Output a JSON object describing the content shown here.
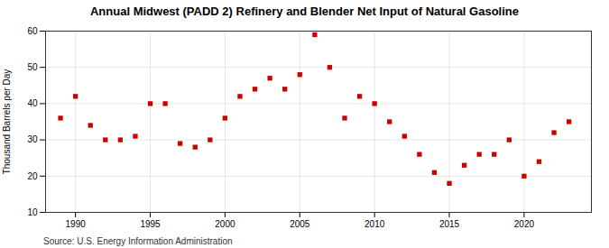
{
  "chart_data": {
    "type": "scatter",
    "title": "Annual Midwest (PADD 2) Refinery and Blender Net Input of Natural Gasoline",
    "ylabel": "Thousand Barrels per Day",
    "source": "Source: U.S. Energy Information Administration",
    "x": [
      1989,
      1990,
      1991,
      1992,
      1993,
      1994,
      1995,
      1996,
      1997,
      1998,
      1999,
      2000,
      2001,
      2002,
      2003,
      2004,
      2005,
      2006,
      2007,
      2008,
      2009,
      2010,
      2011,
      2012,
      2013,
      2014,
      2015,
      2016,
      2017,
      2018,
      2019,
      2020,
      2021,
      2022,
      2023
    ],
    "values": [
      36,
      42,
      34,
      30,
      30,
      31,
      40,
      40,
      29,
      28,
      30,
      36,
      42,
      44,
      47,
      44,
      48,
      59,
      50,
      36,
      42,
      40,
      35,
      31,
      26,
      21,
      18,
      23,
      26,
      26,
      30,
      20,
      24,
      32,
      35
    ],
    "color": "#cc0000",
    "marker": "square",
    "xlim": [
      1988.0,
      2024.5
    ],
    "ylim": [
      10,
      60
    ],
    "xticks": [
      1990,
      1995,
      2000,
      2005,
      2010,
      2015,
      2020
    ],
    "yticks": [
      10,
      20,
      30,
      40,
      50,
      60
    ],
    "grid": true
  }
}
